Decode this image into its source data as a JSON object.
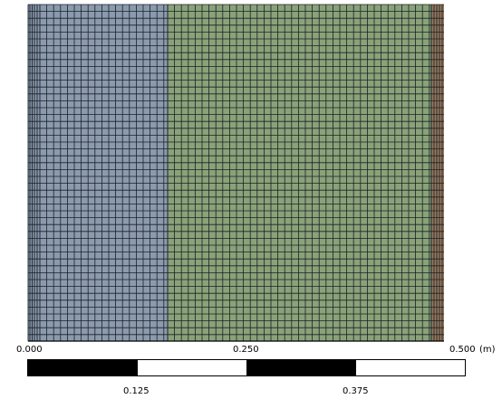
{
  "mesh": {
    "colors": {
      "region_left": "#8c9aae",
      "region_middle": "#8aa278",
      "region_right": "#9a7a5e",
      "grid_line": "#1a2228",
      "edge": "#000000"
    }
  },
  "scale_bar": {
    "top_labels": [
      "0.000",
      "0.250",
      "0.500"
    ],
    "unit": "(m)",
    "bottom_labels": [
      "0.125",
      "0.375"
    ],
    "segments": [
      "black",
      "white",
      "black",
      "white"
    ]
  }
}
